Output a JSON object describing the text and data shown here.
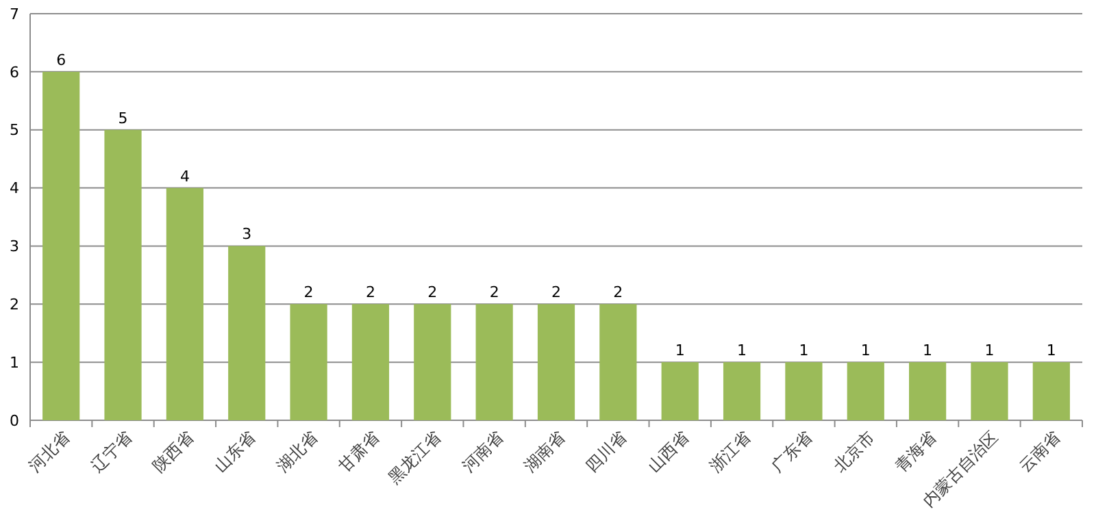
{
  "chart_data": {
    "type": "bar",
    "categories": [
      "河北省",
      "辽宁省",
      "陕西省",
      "山东省",
      "湖北省",
      "甘肃省",
      "黑龙江省",
      "河南省",
      "湖南省",
      "四川省",
      "山西省",
      "浙江省",
      "广东省",
      "北京市",
      "青海省",
      "内蒙古自治区",
      "云南省"
    ],
    "values": [
      6,
      5,
      4,
      3,
      2,
      2,
      2,
      2,
      2,
      2,
      1,
      1,
      1,
      1,
      1,
      1,
      1
    ],
    "color": "#9bbb59",
    "ylim": [
      0,
      7
    ],
    "yticks": [
      0,
      1,
      2,
      3,
      4,
      5,
      6,
      7
    ],
    "grid": "y",
    "data_labels": true
  }
}
